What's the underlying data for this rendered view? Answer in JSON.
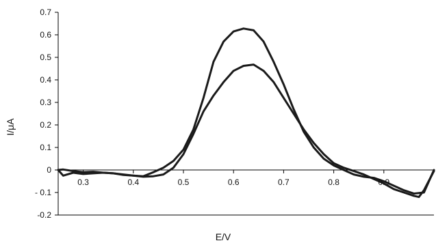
{
  "chart_data": {
    "type": "line",
    "title": "",
    "xlabel": "E/V",
    "ylabel": "I/μA",
    "xlim": [
      0.25,
      1.0
    ],
    "ylim": [
      -0.2,
      0.7
    ],
    "x_ticks": [
      0.3,
      0.4,
      0.5,
      0.6,
      0.7,
      0.8,
      0.9
    ],
    "x_tick_labels": [
      "0.3",
      "0.4",
      "0.5",
      "0.6",
      "0.7",
      "0.8",
      "0.9"
    ],
    "y_ticks": [
      -0.2,
      -0.1,
      0,
      0.1,
      0.2,
      0.3,
      0.4,
      0.5,
      0.6,
      0.7
    ],
    "y_tick_labels": [
      "-0.2",
      "- 0.1",
      "0",
      "0.1",
      "0.2",
      "0.3",
      "0.4",
      "0.5",
      "0.6",
      "0.7"
    ],
    "grid": false,
    "legend": "none",
    "line_color": "#1a1a1a",
    "series": [
      {
        "x": [
          0.25,
          0.26,
          0.28,
          0.3,
          0.32,
          0.34,
          0.36,
          0.38,
          0.4,
          0.42,
          0.44,
          0.46,
          0.48,
          0.5,
          0.52,
          0.54,
          0.56,
          0.58,
          0.6,
          0.62,
          0.64,
          0.66,
          0.68,
          0.7,
          0.72,
          0.74,
          0.76,
          0.78,
          0.8,
          0.82,
          0.84,
          0.86,
          0.88,
          0.9,
          0.92,
          0.94,
          0.96,
          0.98,
          1.0
        ],
        "y": [
          0.0,
          -0.025,
          -0.012,
          -0.018,
          -0.015,
          -0.012,
          -0.015,
          -0.02,
          -0.025,
          -0.028,
          -0.01,
          0.01,
          0.04,
          0.09,
          0.18,
          0.32,
          0.48,
          0.57,
          0.615,
          0.628,
          0.62,
          0.57,
          0.48,
          0.38,
          0.27,
          0.17,
          0.1,
          0.05,
          0.02,
          0.0,
          -0.02,
          -0.03,
          -0.035,
          -0.05,
          -0.07,
          -0.09,
          -0.105,
          -0.1,
          0.0
        ]
      },
      {
        "x": [
          0.25,
          0.26,
          0.28,
          0.3,
          0.32,
          0.34,
          0.36,
          0.38,
          0.4,
          0.42,
          0.44,
          0.46,
          0.48,
          0.5,
          0.52,
          0.54,
          0.56,
          0.58,
          0.6,
          0.62,
          0.64,
          0.66,
          0.68,
          0.7,
          0.72,
          0.74,
          0.76,
          0.78,
          0.8,
          0.82,
          0.84,
          0.86,
          0.88,
          0.9,
          0.92,
          0.94,
          0.96,
          0.97,
          0.98,
          1.0
        ],
        "y": [
          0.0,
          0.002,
          -0.005,
          -0.01,
          -0.008,
          -0.012,
          -0.015,
          -0.022,
          -0.025,
          -0.03,
          -0.028,
          -0.02,
          0.01,
          0.07,
          0.16,
          0.26,
          0.33,
          0.39,
          0.44,
          0.462,
          0.468,
          0.44,
          0.39,
          0.32,
          0.25,
          0.18,
          0.12,
          0.07,
          0.03,
          0.01,
          -0.005,
          -0.02,
          -0.04,
          -0.06,
          -0.085,
          -0.1,
          -0.115,
          -0.12,
          -0.09,
          -0.005
        ]
      }
    ]
  }
}
